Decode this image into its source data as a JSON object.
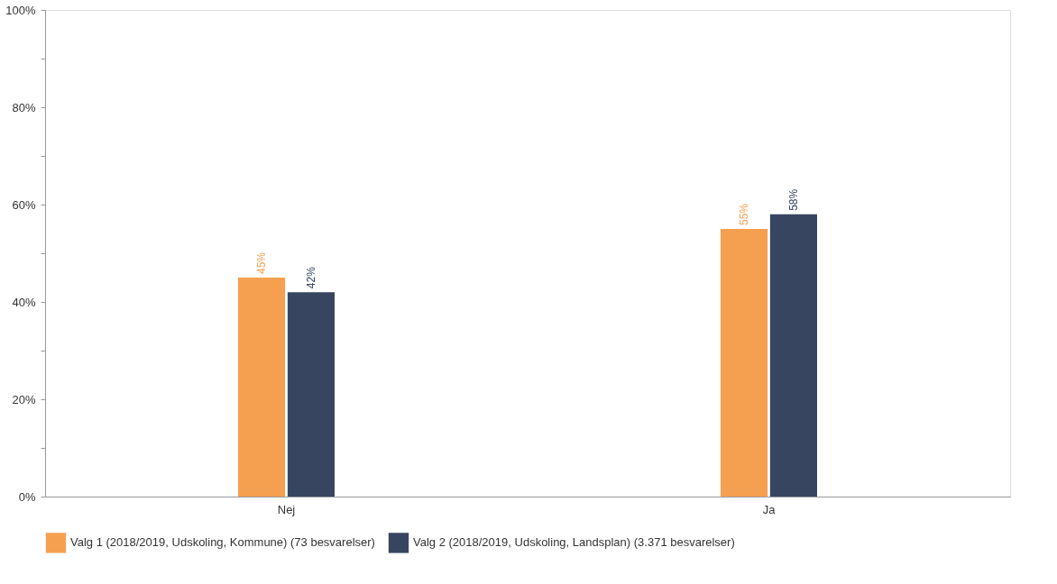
{
  "chart_data": {
    "type": "bar",
    "categories": [
      "Nej",
      "Ja"
    ],
    "series": [
      {
        "name": "Valg 1 (2018/2019, Udskoling, Kommune) (73 besvarelser)",
        "color": "#f5a051",
        "values": [
          45,
          55
        ],
        "value_labels": [
          "45%",
          "55%"
        ]
      },
      {
        "name": "Valg 2 (2018/2019, Udskoling, Landsplan) (3.371 besvarelser)",
        "color": "#374561",
        "values": [
          42,
          58
        ],
        "value_labels": [
          "42%",
          "58%"
        ]
      }
    ],
    "ylim": [
      0,
      100
    ],
    "yticks": [
      {
        "value": 0,
        "label": "0%"
      },
      {
        "value": 10,
        "label": null
      },
      {
        "value": 20,
        "label": "20%"
      },
      {
        "value": 30,
        "label": null
      },
      {
        "value": 40,
        "label": "40%"
      },
      {
        "value": 50,
        "label": null
      },
      {
        "value": 60,
        "label": "60%"
      },
      {
        "value": 70,
        "label": null
      },
      {
        "value": 80,
        "label": "80%"
      },
      {
        "value": 90,
        "label": null
      },
      {
        "value": 100,
        "label": "100%"
      }
    ],
    "grid": false,
    "legend": "bottom"
  }
}
